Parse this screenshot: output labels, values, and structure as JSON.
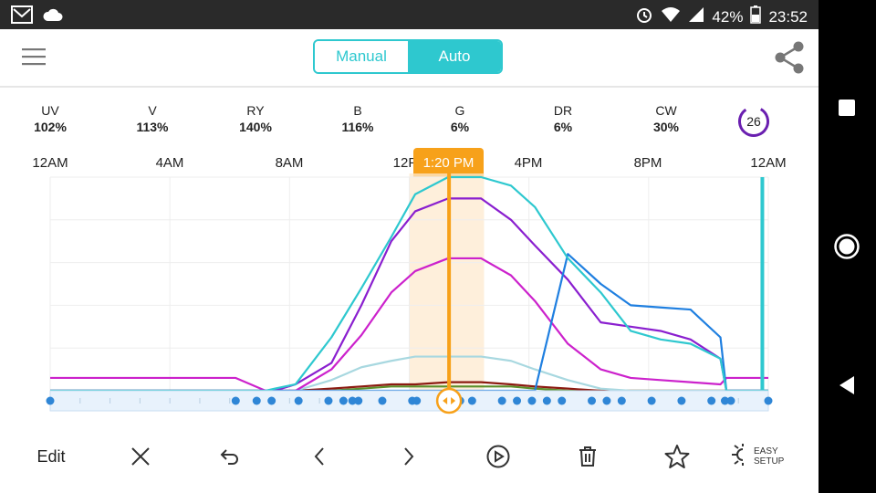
{
  "status_bar": {
    "battery": "42%",
    "time": "23:52",
    "icons": [
      "gmail-icon",
      "cloud-icon",
      "alarm-icon",
      "wifi-icon",
      "signal-icon",
      "battery-icon"
    ]
  },
  "header": {
    "mode_manual": "Manual",
    "mode_auto": "Auto",
    "active_mode": "Auto",
    "accent_color": "#2ec8cf"
  },
  "channels": [
    {
      "name": "UV",
      "value": "102%"
    },
    {
      "name": "V",
      "value": "113%"
    },
    {
      "name": "RY",
      "value": "140%"
    },
    {
      "name": "B",
      "value": "116%"
    },
    {
      "name": "G",
      "value": "6%"
    },
    {
      "name": "DR",
      "value": "6%"
    },
    {
      "name": "CW",
      "value": "30%"
    }
  ],
  "counter": "26",
  "time_axis": [
    "12AM",
    "4AM",
    "8AM",
    "12P",
    "4PM",
    "8PM",
    "12AM"
  ],
  "cursor_time": "1:20 PM",
  "cursor_color": "#f7a11a",
  "toolbar": {
    "edit_label": "Edit",
    "easy_setup_line1": "EASY",
    "easy_setup_line2": "SETUP"
  },
  "chart_data": {
    "type": "line",
    "x_unit": "hour of day",
    "xlim": [
      0,
      24
    ],
    "ylim": [
      0,
      100
    ],
    "x": [
      0,
      2.5,
      4,
      6,
      6.2,
      7.2,
      7.5,
      8.2,
      9.4,
      10.4,
      11.4,
      12.2,
      13.3,
      14.4,
      15.4,
      16.2,
      17.3,
      18.4,
      19.4,
      20.4,
      21.4,
      22.4,
      22.6,
      24
    ],
    "series": [
      {
        "color": "#2ec8cf",
        "values": [
          0,
          0,
          0,
          0,
          0,
          0,
          1,
          3,
          25,
          48,
          72,
          92,
          100,
          100,
          96,
          86,
          62,
          46,
          28,
          24,
          22,
          15,
          0,
          0
        ]
      },
      {
        "color": "#1f7fe0",
        "values": [
          0,
          0,
          0,
          0,
          0,
          0,
          0,
          0,
          0,
          0,
          0,
          0,
          0,
          0,
          0,
          0,
          64,
          50,
          40,
          39,
          38,
          25,
          0,
          0
        ]
      },
      {
        "color": "#8a1fcf",
        "values": [
          0,
          0,
          0,
          0,
          0,
          0,
          0,
          3,
          13,
          40,
          70,
          84,
          90,
          90,
          80,
          68,
          52,
          32,
          30,
          28,
          24,
          15,
          0,
          0
        ]
      },
      {
        "color": "#cc22cc",
        "values": [
          6,
          6,
          6,
          6,
          6,
          0,
          0,
          0,
          10,
          26,
          46,
          56,
          62,
          62,
          54,
          42,
          22,
          10,
          6,
          5,
          4,
          3,
          6,
          6
        ]
      },
      {
        "color": "#a8d8e0",
        "values": [
          0,
          0,
          0,
          0,
          0,
          0,
          0,
          0,
          5,
          11,
          14,
          16,
          16,
          16,
          14,
          10,
          5,
          1,
          0,
          0,
          0,
          0,
          0,
          0
        ]
      },
      {
        "color": "#8b1a10",
        "values": [
          0,
          0,
          0,
          0,
          0,
          0,
          0,
          0,
          1,
          2,
          3,
          3,
          4,
          4,
          3,
          2,
          1,
          0,
          0,
          0,
          0,
          0,
          0,
          0
        ]
      },
      {
        "color": "#5b8f2a",
        "values": [
          0,
          0,
          0,
          0,
          0,
          0,
          0,
          0,
          0,
          1,
          2,
          2,
          2,
          2,
          2,
          1,
          0,
          0,
          0,
          0,
          0,
          0,
          0,
          0
        ]
      }
    ],
    "cursor_hour": 13.33,
    "cursor_band": [
      12,
      14.5
    ],
    "end_marker_hour": 23.8,
    "keyframe_hours": [
      0,
      6.2,
      6.9,
      7.4,
      8.3,
      9.3,
      9.8,
      10.1,
      10.3,
      11.1,
      12.1,
      12.25,
      13.1,
      13.7,
      14.1,
      15.1,
      15.6,
      16.1,
      16.6,
      17.1,
      18.1,
      18.6,
      19.1,
      20.1,
      21.1,
      22.1,
      22.55,
      22.75,
      24
    ],
    "grid": true,
    "legend": "none"
  }
}
